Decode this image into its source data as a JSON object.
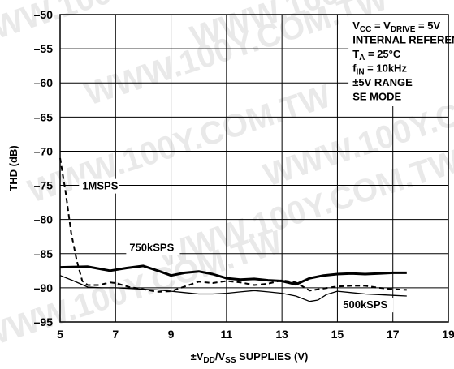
{
  "chart_data": {
    "type": "line",
    "xlabel": {
      "pre": "±V",
      "sub1": "DD",
      "mid": "/V",
      "sub2": "SS",
      "post": " SUPPLIES (V)"
    },
    "ylabel": "THD (dB)",
    "xlim": [
      5,
      19
    ],
    "ylim": [
      -95,
      -50
    ],
    "xticks": [
      5,
      7,
      9,
      11,
      13,
      15,
      17,
      19
    ],
    "yticks": [
      -50,
      -55,
      -60,
      -65,
      -70,
      -75,
      -80,
      -85,
      -90,
      -95
    ],
    "grid": true,
    "conditions": [
      {
        "a": "V",
        "a_sub": "CC",
        "b": " = V",
        "b_sub": "DRIVE",
        "c": " = 5V"
      },
      {
        "a": "INTERNAL REFERENCE"
      },
      {
        "a": "T",
        "a_sub": "A",
        "b": " = 25°C"
      },
      {
        "a": "f",
        "a_sub": "IN",
        "b": " = 10kHz"
      },
      {
        "a": "±5V RANGE"
      },
      {
        "a": "SE MODE"
      }
    ],
    "series": [
      {
        "name": "1MSPS",
        "style": "dashed",
        "width": 2,
        "x": [
          5,
          5.2,
          5.4,
          5.6,
          5.8,
          6.0,
          6.4,
          6.8,
          7.0,
          7.5,
          8.0,
          8.5,
          9.0,
          9.5,
          10.0,
          10.5,
          11.0,
          11.5,
          12.0,
          12.5,
          13.0,
          13.5,
          14.0,
          14.5,
          15.0,
          15.5,
          16.0,
          16.5,
          17.0,
          17.5
        ],
        "y": [
          -71,
          -76,
          -82,
          -86,
          -89,
          -89.6,
          -89.6,
          -89.2,
          -89.3,
          -89.9,
          -90.2,
          -90.6,
          -90.5,
          -89.8,
          -89.1,
          -89.3,
          -89.0,
          -89.2,
          -89.6,
          -89.4,
          -88.9,
          -89.2,
          -90.4,
          -90.1,
          -89.8,
          -89.7,
          -89.7,
          -90.0,
          -90.2,
          -90.3
        ]
      },
      {
        "name": "750kSPS",
        "style": "solid",
        "width": 3,
        "x": [
          5,
          6.0,
          6.8,
          7.4,
          8.0,
          8.6,
          9.0,
          9.5,
          10.0,
          10.5,
          11.0,
          11.5,
          12.0,
          12.5,
          13.0,
          13.5,
          14.0,
          14.5,
          15.0,
          15.5,
          16.0,
          16.5,
          17.0,
          17.5
        ],
        "y": [
          -87.0,
          -86.9,
          -87.5,
          -87.1,
          -86.8,
          -87.6,
          -88.2,
          -87.8,
          -87.6,
          -88.0,
          -88.6,
          -88.8,
          -88.7,
          -88.9,
          -89.0,
          -89.5,
          -88.6,
          -88.2,
          -88.0,
          -87.9,
          -88.0,
          -87.9,
          -87.8,
          -87.8
        ]
      },
      {
        "name": "500kSPS",
        "style": "solid",
        "width": 1.3,
        "x": [
          5,
          5.5,
          6.0,
          6.5,
          7.0,
          7.5,
          8.0,
          8.5,
          9.0,
          9.5,
          10.0,
          10.5,
          11.0,
          11.5,
          12.0,
          12.5,
          13.0,
          13.5,
          14.0,
          14.3,
          14.6,
          15.0,
          15.5,
          16.0,
          16.5,
          17.0,
          17.5
        ],
        "y": [
          -88.2,
          -89.0,
          -89.9,
          -90.0,
          -90.0,
          -90.1,
          -90.2,
          -90.3,
          -90.5,
          -90.7,
          -90.9,
          -90.9,
          -90.8,
          -90.6,
          -90.4,
          -90.6,
          -90.8,
          -91.2,
          -92.0,
          -91.8,
          -91.0,
          -90.5,
          -90.7,
          -90.9,
          -91.0,
          -91.1,
          -91.2
        ]
      }
    ],
    "series_labels": [
      "1MSPS",
      "750kSPS",
      "500kSPS"
    ],
    "watermark": [
      "WWW.100Y.COM.TW",
      "WWW.100Y.COM.TW",
      "WWW.100Y.COM.TW",
      "WWW.100Y.COM.TW",
      "WWW.100Y.COM.TW",
      "WWW.100Y.COM.TW",
      "WWW.100Y.COM.TW"
    ]
  }
}
